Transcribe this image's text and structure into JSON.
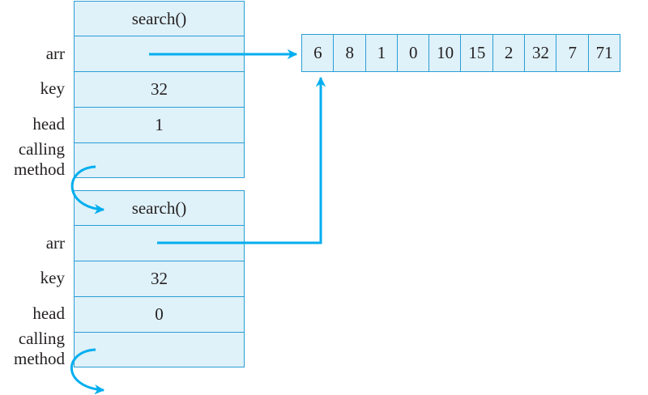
{
  "frames": [
    {
      "title": "search()",
      "fields": {
        "arr": {
          "label": "arr",
          "value": ""
        },
        "key": {
          "label": "key",
          "value": "32"
        },
        "head": {
          "label": "head",
          "value": "1"
        },
        "calling": {
          "label_line1": "calling",
          "label_line2": "method",
          "value": ""
        }
      }
    },
    {
      "title": "search()",
      "fields": {
        "arr": {
          "label": "arr",
          "value": ""
        },
        "key": {
          "label": "key",
          "value": "32"
        },
        "head": {
          "label": "head",
          "value": "0"
        },
        "calling": {
          "label_line1": "calling",
          "label_line2": "method",
          "value": ""
        }
      }
    }
  ],
  "array": [
    "6",
    "8",
    "1",
    "0",
    "10",
    "15",
    "2",
    "32",
    "7",
    "71"
  ],
  "colors": {
    "accent": "#00aeef",
    "cell_fill": "#dff1f9",
    "border": "#2a9fd6"
  }
}
